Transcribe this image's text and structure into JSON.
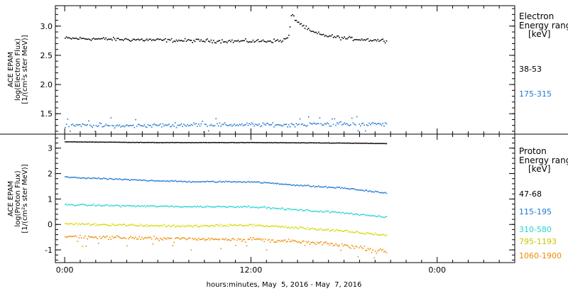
{
  "chart_data": [
    {
      "type": "scatter",
      "panel": "electron",
      "ylabel_lines": [
        "ACE EPAM",
        "log(Electron Flux)",
        "[1/(cm²s ster MeV)]"
      ],
      "yticks": [
        "3.0",
        "2.5",
        "2.0",
        "1.5"
      ],
      "ytick_values": [
        3.0,
        2.5,
        2.0,
        1.5
      ],
      "ylim": [
        1.15,
        3.35
      ],
      "legend_title": [
        "Electron",
        "Energy ranges",
        "[keV]"
      ],
      "series": [
        {
          "name": "38-53",
          "color": "#000000",
          "points": [
            [
              0,
              2.8
            ],
            [
              4,
              2.78
            ],
            [
              8,
              2.76
            ],
            [
              12,
              2.75
            ],
            [
              14,
              2.76
            ],
            [
              14.4,
              2.82
            ],
            [
              14.6,
              3.22
            ],
            [
              14.9,
              3.1
            ],
            [
              15.3,
              3.02
            ],
            [
              15.8,
              2.92
            ],
            [
              16.5,
              2.86
            ],
            [
              18,
              2.8
            ],
            [
              20,
              2.77
            ],
            [
              20.7,
              2.76
            ]
          ]
        },
        {
          "name": "175-315",
          "color": "#1f78d1",
          "points": [
            [
              0,
              1.32
            ],
            [
              4,
              1.3
            ],
            [
              8,
              1.32
            ],
            [
              12,
              1.32
            ],
            [
              14.6,
              1.32
            ],
            [
              16,
              1.33
            ],
            [
              18,
              1.33
            ],
            [
              20.7,
              1.33
            ]
          ]
        }
      ]
    },
    {
      "type": "scatter",
      "panel": "proton",
      "ylabel_lines": [
        "ACE EPAM",
        "log(Proton Flux)",
        "[1/(cm²s ster MeV)]"
      ],
      "yticks": [
        "3",
        "2",
        "1",
        "0",
        "-1"
      ],
      "ytick_values": [
        3,
        2,
        1,
        0,
        -1
      ],
      "ylim": [
        -1.5,
        3.55
      ],
      "legend_title": [
        "Proton",
        "Energy ranges",
        "[keV]"
      ],
      "series": [
        {
          "name": "47-68",
          "color": "#000000",
          "points": [
            [
              0,
              3.27
            ],
            [
              6,
              3.24
            ],
            [
              12,
              3.24
            ],
            [
              18,
              3.22
            ],
            [
              20.7,
              3.2
            ]
          ]
        },
        {
          "name": "115-195",
          "color": "#1f78d1",
          "points": [
            [
              0,
              1.88
            ],
            [
              4,
              1.78
            ],
            [
              8,
              1.7
            ],
            [
              12,
              1.7
            ],
            [
              16,
              1.52
            ],
            [
              18,
              1.45
            ],
            [
              20.7,
              1.25
            ]
          ]
        },
        {
          "name": "310-580",
          "color": "#27d3d3",
          "points": [
            [
              0,
              0.8
            ],
            [
              4,
              0.75
            ],
            [
              8,
              0.72
            ],
            [
              12,
              0.72
            ],
            [
              16,
              0.55
            ],
            [
              18,
              0.48
            ],
            [
              20.7,
              0.3
            ]
          ]
        },
        {
          "name": "795-1193",
          "color": "#d6d600",
          "points": [
            [
              0,
              0.05
            ],
            [
              4,
              0.0
            ],
            [
              8,
              -0.05
            ],
            [
              12,
              0.0
            ],
            [
              16,
              -0.15
            ],
            [
              18,
              -0.25
            ],
            [
              20.7,
              -0.4
            ]
          ]
        },
        {
          "name": "1060-1900",
          "color": "#f08a00",
          "points": [
            [
              0,
              -0.45
            ],
            [
              4,
              -0.5
            ],
            [
              8,
              -0.55
            ],
            [
              12,
              -0.55
            ],
            [
              16,
              -0.7
            ],
            [
              18,
              -0.8
            ],
            [
              20.7,
              -1.05
            ]
          ]
        }
      ]
    }
  ],
  "xaxis": {
    "ticklabels": [
      "0:00",
      "12:00",
      "0:00"
    ],
    "tick_hours": [
      0,
      12,
      24
    ],
    "xlim": [
      -0.6,
      29.0
    ],
    "label": "hours:minutes, May  5, 2016 - May  7, 2016"
  }
}
